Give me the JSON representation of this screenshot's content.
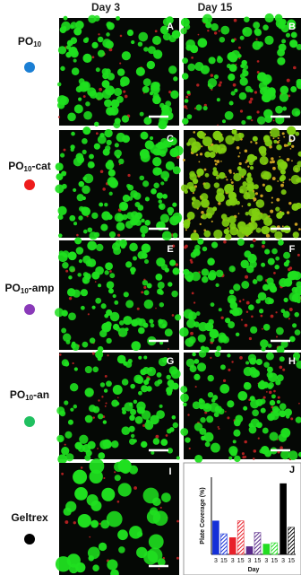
{
  "column_headers": [
    "Day 3",
    "Day 15"
  ],
  "rows": [
    {
      "prefix": "PO",
      "subscript": "10",
      "suffix": "",
      "dot_color": "#1b7fd4"
    },
    {
      "prefix": "PO",
      "subscript": "10",
      "suffix": "-cat",
      "dot_color": "#ee1c1c"
    },
    {
      "prefix": "PO",
      "subscript": "10",
      "suffix": "-amp",
      "dot_color": "#8a3ab9"
    },
    {
      "prefix": "PO",
      "subscript": "10",
      "suffix": "-an",
      "dot_color": "#20c060"
    },
    {
      "prefix": "Geltrex",
      "dot_color": "#000000"
    }
  ],
  "panels": [
    "A",
    "B",
    "C",
    "D",
    "E",
    "F",
    "G",
    "H",
    "I"
  ],
  "chart_data": {
    "type": "bar",
    "panel_label": "J",
    "y_label": "Plate Coverage (%)",
    "x_label": "Day",
    "categories": [
      "3",
      "15",
      "3",
      "15",
      "3",
      "15",
      "3",
      "15",
      "3",
      "15"
    ],
    "values": [
      26,
      16,
      13,
      26,
      6,
      17,
      8,
      9,
      55,
      21
    ],
    "colors": [
      "#1530d8",
      "#1530d8",
      "#e8202a",
      "#e8202a",
      "#5a2a8a",
      "#5a2a8a",
      "#22dd22",
      "#22dd22",
      "#000000",
      "#000000"
    ],
    "hatched": [
      false,
      true,
      false,
      true,
      false,
      true,
      false,
      true,
      false,
      true
    ],
    "ylim": [
      0,
      60
    ]
  }
}
